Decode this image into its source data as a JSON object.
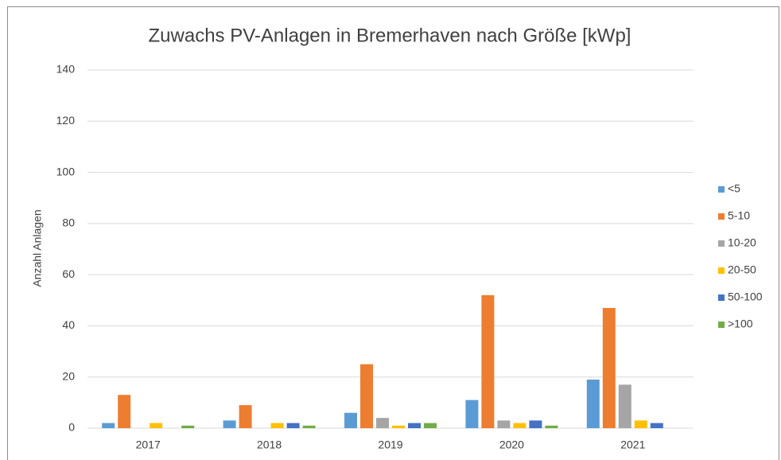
{
  "chart_data": {
    "type": "bar",
    "title": "Zuwachs PV-Anlagen in Bremerhaven nach Größe [kWp]",
    "y_label": "Anzahl Anlagen",
    "categories": [
      "2017",
      "2018",
      "2019",
      "2020",
      "2021"
    ],
    "series": [
      {
        "name": "<5",
        "color": "#5b9bd5",
        "values": [
          2,
          3,
          6,
          11,
          19
        ]
      },
      {
        "name": "5-10",
        "color": "#ed7d31",
        "values": [
          13,
          9,
          25,
          52,
          47
        ]
      },
      {
        "name": "10-20",
        "color": "#a5a5a5",
        "values": [
          0,
          0,
          4,
          3,
          17
        ]
      },
      {
        "name": "20-50",
        "color": "#ffc000",
        "values": [
          2,
          2,
          1,
          2,
          3
        ]
      },
      {
        "name": "50-100",
        "color": "#4472c4",
        "values": [
          0,
          2,
          2,
          3,
          2
        ]
      },
      {
        "name": ">100",
        "color": "#70ad47",
        "values": [
          1,
          1,
          2,
          1,
          0
        ]
      }
    ],
    "ylim": [
      0,
      140
    ],
    "yticks": [
      0,
      20,
      40,
      60,
      80,
      100,
      120,
      140
    ],
    "grid": true,
    "legend": "right"
  }
}
